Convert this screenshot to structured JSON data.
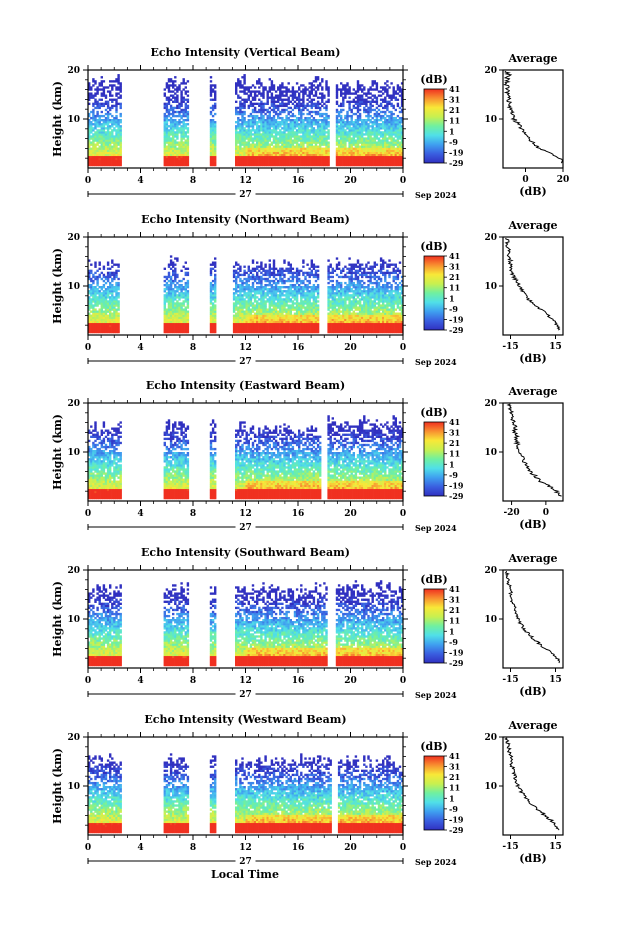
{
  "colorbar": {
    "label": "(dB)",
    "ticks": [
      "41",
      "31",
      "21",
      "11",
      "1",
      "-9",
      "-19",
      "-29"
    ],
    "range": [
      -29,
      41
    ],
    "stops": [
      "#3030c0",
      "#3a5fe0",
      "#3fa0f0",
      "#50e0e8",
      "#70f0a0",
      "#c8f050",
      "#f8e838",
      "#f89030",
      "#f03020"
    ]
  },
  "x_axis": {
    "ticks": [
      "0",
      "4",
      "8",
      "12",
      "16",
      "20",
      "0"
    ],
    "day_label": "27",
    "date_label": "Sep 2024",
    "xlabel": "Local Time"
  },
  "y_axis": {
    "ticks": [
      "20",
      "10"
    ],
    "ylabel": "Height (km)"
  },
  "avg_common": {
    "title": "Average",
    "xlabel": "(dB)",
    "yticks": [
      "20",
      "10"
    ]
  },
  "chart_data": [
    {
      "type": "heatmap",
      "title": "Echo Intensity (Vertical Beam)",
      "xlim": [
        0,
        24
      ],
      "ylim": [
        0,
        20
      ],
      "gaps_hours": [
        [
          2.6,
          5.8
        ],
        [
          7.7,
          9.3
        ],
        [
          9.8,
          11.2
        ],
        [
          18.4,
          18.9
        ]
      ],
      "top_km": [
        19.5,
        19.5,
        19.0,
        18.5
      ],
      "profile": {
        "xlim": [
          -12,
          20
        ],
        "xticks": [
          "0",
          "20"
        ],
        "xtick_values": [
          0,
          20
        ],
        "heights": [
          1,
          2,
          3,
          4,
          5,
          6,
          7,
          8,
          9,
          10,
          11,
          12,
          13,
          14,
          15,
          16,
          17,
          18,
          19,
          20
        ],
        "values": [
          20,
          18,
          14,
          8,
          4,
          2,
          0,
          -2,
          -4,
          -6,
          -7,
          -8,
          -8,
          -9,
          -9,
          -10,
          -10,
          -10,
          -9,
          -11
        ]
      }
    },
    {
      "type": "heatmap",
      "title": "Echo Intensity (Northward Beam)",
      "xlim": [
        0,
        24
      ],
      "ylim": [
        0,
        20
      ],
      "gaps_hours": [
        [
          2.4,
          5.8
        ],
        [
          7.7,
          9.3
        ],
        [
          9.7,
          11.0
        ],
        [
          17.6,
          18.3
        ]
      ],
      "top_km": [
        16.0,
        16.5,
        15.5,
        16.0
      ],
      "profile": {
        "xlim": [
          -20,
          20
        ],
        "xticks": [
          "-15",
          "15"
        ],
        "xtick_values": [
          -15,
          15
        ],
        "heights": [
          1,
          2,
          3,
          4,
          5,
          6,
          7,
          8,
          9,
          10,
          11,
          12,
          13,
          14,
          15,
          16,
          17,
          18,
          19,
          20
        ],
        "values": [
          17,
          16,
          14,
          10,
          6,
          2,
          -2,
          -5,
          -7,
          -9,
          -11,
          -13,
          -14,
          -15,
          -15,
          -16,
          -16,
          -17,
          -17,
          -18
        ]
      }
    },
    {
      "type": "heatmap",
      "title": "Echo Intensity (Eastward Beam)",
      "xlim": [
        0,
        24
      ],
      "ylim": [
        0,
        20
      ],
      "gaps_hours": [
        [
          2.6,
          5.8
        ],
        [
          7.7,
          9.3
        ],
        [
          9.8,
          11.2
        ],
        [
          17.8,
          18.2
        ]
      ],
      "top_km": [
        16.5,
        17.0,
        16.0,
        17.5
      ],
      "profile": {
        "xlim": [
          -25,
          10
        ],
        "xticks": [
          "-20",
          "0"
        ],
        "xtick_values": [
          -20,
          0
        ],
        "heights": [
          1,
          2,
          3,
          4,
          5,
          6,
          7,
          8,
          9,
          10,
          11,
          12,
          13,
          14,
          15,
          16,
          17,
          18,
          19,
          20
        ],
        "values": [
          8,
          6,
          2,
          -3,
          -6,
          -9,
          -11,
          -13,
          -14,
          -15,
          -16,
          -17,
          -17,
          -18,
          -18,
          -19,
          -20,
          -20,
          -21,
          -21
        ]
      }
    },
    {
      "type": "heatmap",
      "title": "Echo Intensity (Southward Beam)",
      "xlim": [
        0,
        24
      ],
      "ylim": [
        0,
        20
      ],
      "gaps_hours": [
        [
          2.6,
          5.8
        ],
        [
          7.7,
          9.3
        ],
        [
          9.8,
          11.2
        ],
        [
          18.3,
          18.9
        ]
      ],
      "top_km": [
        17.5,
        18.0,
        17.5,
        18.0
      ],
      "profile": {
        "xlim": [
          -20,
          20
        ],
        "xticks": [
          "-15",
          "15"
        ],
        "xtick_values": [
          -15,
          15
        ],
        "heights": [
          1,
          2,
          3,
          4,
          5,
          6,
          7,
          8,
          9,
          10,
          11,
          12,
          13,
          14,
          15,
          16,
          17,
          18,
          19,
          20
        ],
        "values": [
          17,
          16,
          13,
          8,
          4,
          0,
          -3,
          -6,
          -8,
          -10,
          -11,
          -12,
          -13,
          -14,
          -15,
          -15,
          -16,
          -17,
          -17,
          -18
        ]
      }
    },
    {
      "type": "heatmap",
      "title": "Echo Intensity (Westward Beam)",
      "xlim": [
        0,
        24
      ],
      "ylim": [
        0,
        20
      ],
      "gaps_hours": [
        [
          2.6,
          5.8
        ],
        [
          7.7,
          9.3
        ],
        [
          9.8,
          11.2
        ],
        [
          18.5,
          19.0
        ]
      ],
      "top_km": [
        16.5,
        17.0,
        16.5,
        16.5
      ],
      "profile": {
        "xlim": [
          -20,
          20
        ],
        "xticks": [
          "-15",
          "15"
        ],
        "xtick_values": [
          -15,
          15
        ],
        "heights": [
          1,
          2,
          3,
          4,
          5,
          6,
          7,
          8,
          9,
          10,
          11,
          12,
          13,
          14,
          15,
          16,
          17,
          18,
          19,
          20
        ],
        "values": [
          17,
          15,
          12,
          8,
          4,
          0,
          -3,
          -6,
          -8,
          -10,
          -11,
          -12,
          -13,
          -14,
          -15,
          -15,
          -16,
          -16,
          -17,
          -18
        ]
      }
    }
  ]
}
